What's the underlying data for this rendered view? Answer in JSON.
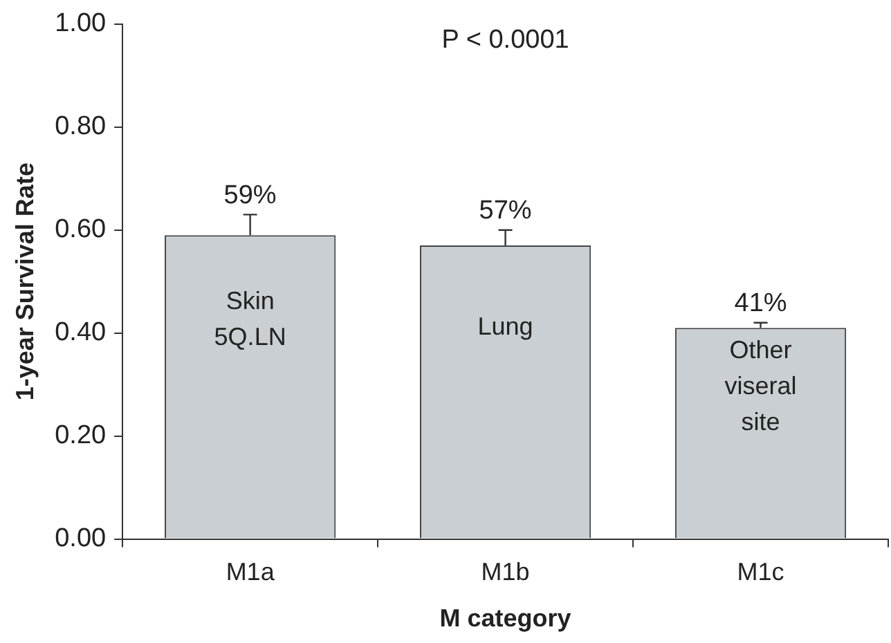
{
  "chart_data": {
    "type": "bar",
    "xlabel": "M category",
    "ylabel": "1-year Survival Rate",
    "categories": [
      "M1a",
      "M1b",
      "M1c"
    ],
    "values": [
      0.59,
      0.57,
      0.41
    ],
    "color": "#c9cfd2",
    "errors": [
      [
        0.59,
        0.63
      ],
      [
        0.57,
        0.6
      ],
      [
        0.41,
        0.42
      ]
    ],
    "value_labels": [
      "59%",
      "57%",
      "41%"
    ],
    "ylim": [
      0,
      1
    ],
    "yticks": [
      {
        "value": 0,
        "label": "0.00"
      },
      {
        "value": 0.2,
        "label": "0.20"
      },
      {
        "value": 0.4,
        "label": "0.40"
      },
      {
        "value": 0.6,
        "label": "0.60"
      },
      {
        "value": 0.8,
        "label": "0.80"
      },
      {
        "value": 1,
        "label": "1.00"
      }
    ],
    "grid": false,
    "legend": false,
    "annotations": [
      "P < 0.0001",
      "Skin\n5Q.LN",
      "Lung",
      "Other\nviseral\nsite"
    ]
  }
}
